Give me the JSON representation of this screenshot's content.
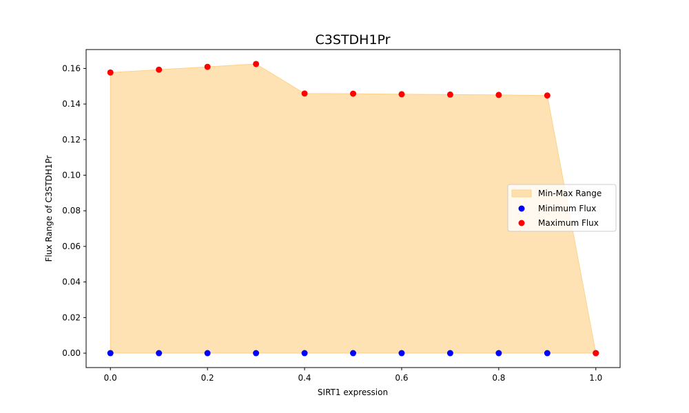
{
  "chart_data": {
    "type": "area",
    "title": "C3STDH1Pr",
    "xlabel": "SIRT1 expression",
    "ylabel": "Flux Range of C3STDH1Pr",
    "x": [
      0.0,
      0.1,
      0.2,
      0.3,
      0.4,
      0.5,
      0.6,
      0.7,
      0.8,
      0.9,
      1.0
    ],
    "series": [
      {
        "name": "Minimum Flux",
        "kind": "scatter",
        "color": "#0000ff",
        "values": [
          0,
          0,
          0,
          0,
          0,
          0,
          0,
          0,
          0,
          0,
          0
        ]
      },
      {
        "name": "Maximum Flux",
        "kind": "scatter",
        "color": "#ff0000",
        "values": [
          0.1577,
          0.1593,
          0.1609,
          0.1625,
          0.1459,
          0.1458,
          0.1455,
          0.1453,
          0.1451,
          0.1448,
          0.0
        ]
      }
    ],
    "range_fill": {
      "name": "Min-Max Range",
      "color": "#fdd28a",
      "opacity": 0.65
    },
    "xlim": [
      -0.05,
      1.05
    ],
    "ylim": [
      -0.0081,
      0.1706
    ],
    "xticks": [
      "0.0",
      "0.2",
      "0.4",
      "0.6",
      "0.8",
      "1.0"
    ],
    "yticks": [
      "0.00",
      "0.02",
      "0.04",
      "0.06",
      "0.08",
      "0.10",
      "0.12",
      "0.14",
      "0.16"
    ],
    "grid": false,
    "legend_position": "center-right"
  }
}
